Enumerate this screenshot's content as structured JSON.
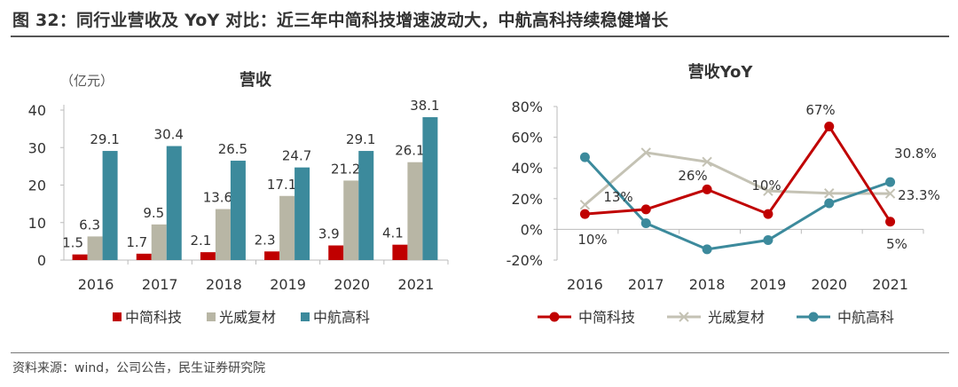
{
  "figure_title": "图 32：同行业营收及 YoY 对比：近三年中简科技增速波动大，中航高科持续稳健增长",
  "source": "资料来源：wind，公司公告，民生证券研究院",
  "chart_data": [
    {
      "type": "bar",
      "title": "营收",
      "unit_label": "（亿元）",
      "categories": [
        "2016",
        "2017",
        "2018",
        "2019",
        "2020",
        "2021"
      ],
      "ylim": [
        0,
        40
      ],
      "yticks": [
        "0",
        "10",
        "20",
        "30",
        "40"
      ],
      "legend_position": "bottom",
      "series": [
        {
          "name": "中简科技",
          "color": "#c00000",
          "values": [
            1.5,
            1.7,
            2.1,
            2.3,
            3.9,
            4.1
          ],
          "labels": [
            "1.5",
            "1.7",
            "2.1",
            "2.3",
            "3.9",
            "4.1"
          ]
        },
        {
          "name": "光威复材",
          "color": "#b8b6a5",
          "values": [
            6.3,
            9.5,
            13.6,
            17.1,
            21.2,
            26.1
          ],
          "labels": [
            "6.3",
            "9.5",
            "13.6",
            "17.1",
            "21.2",
            "26.1"
          ]
        },
        {
          "name": "中航高科",
          "color": "#3c8a9c",
          "values": [
            29.1,
            30.4,
            26.5,
            24.7,
            29.1,
            38.1
          ],
          "labels": [
            "29.1",
            "30.4",
            "26.5",
            "24.7",
            "29.1",
            "38.1"
          ]
        }
      ]
    },
    {
      "type": "line",
      "title": "营收YoY",
      "categories": [
        "2016",
        "2017",
        "2018",
        "2019",
        "2020",
        "2021"
      ],
      "ylim": [
        -20,
        80
      ],
      "yticks": [
        "-20%",
        "0%",
        "20%",
        "40%",
        "60%",
        "80%"
      ],
      "legend_position": "bottom",
      "series": [
        {
          "name": "中简科技",
          "color": "#c00000",
          "marker": "circle",
          "values": [
            10,
            13,
            26,
            10,
            67,
            5
          ],
          "labels": [
            "10%",
            "13%",
            "26%",
            "10%",
            "67%",
            "5%"
          ]
        },
        {
          "name": "光威复材",
          "color": "#c4c2b4",
          "marker": "x",
          "values": [
            16,
            50,
            44,
            25,
            23.5,
            23.3
          ],
          "labels": [
            "",
            "",
            "",
            "",
            "",
            "23.3%"
          ]
        },
        {
          "name": "中航高科",
          "color": "#3c8a9c",
          "marker": "circle",
          "values": [
            47,
            4,
            -13,
            -7,
            17,
            30.8
          ],
          "labels": [
            "",
            "",
            "",
            "",
            "",
            "30.8%"
          ]
        }
      ]
    }
  ]
}
